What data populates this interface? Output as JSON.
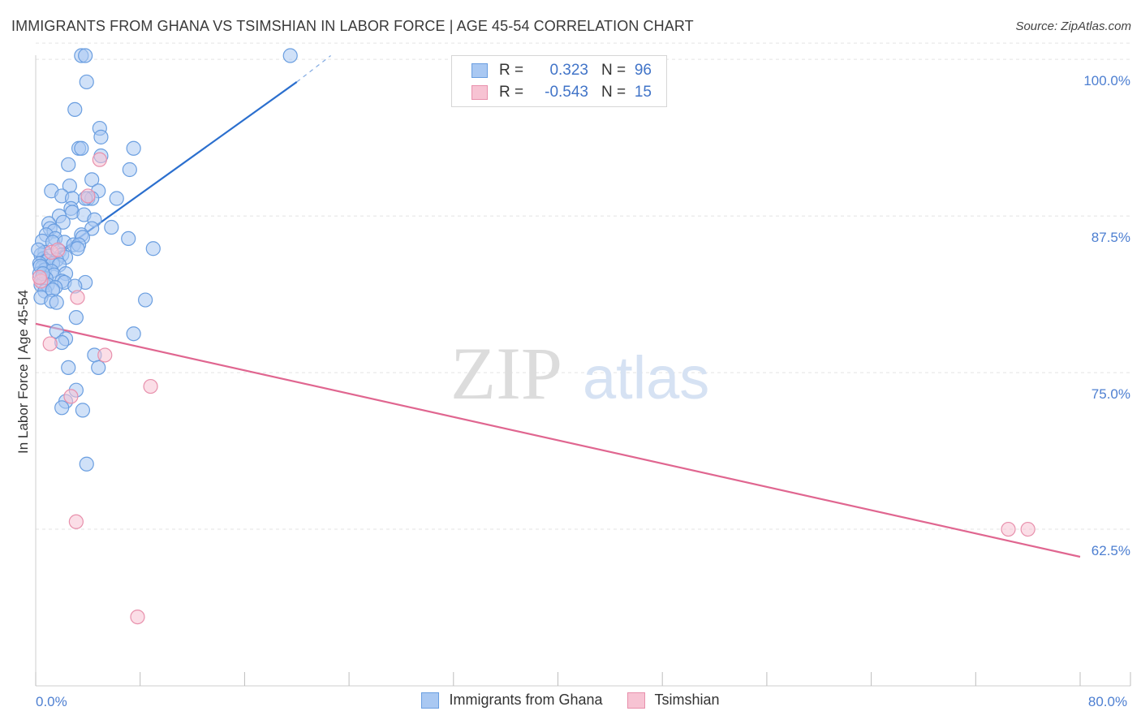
{
  "header": {
    "title": "IMMIGRANTS FROM GHANA VS TSIMSHIAN IN LABOR FORCE | AGE 45-54 CORRELATION CHART",
    "source": "Source: ZipAtlas.com"
  },
  "watermark": {
    "zip": "ZIP",
    "atlas": "atlas"
  },
  "legend": {
    "rows": [
      {
        "r_label": "R =",
        "r_value": "0.323",
        "n_label": "N =",
        "n_value": "96",
        "color": "#a9c8f2",
        "border": "#6a9ee0"
      },
      {
        "r_label": "R =",
        "r_value": "-0.543",
        "n_label": "N =",
        "n_value": "15",
        "color": "#f7c3d3",
        "border": "#e890ac"
      }
    ]
  },
  "bottom_legend": {
    "series1": "Immigrants from Ghana",
    "series2": "Tsimshian"
  },
  "chart_data": {
    "type": "scatter",
    "title": "IMMIGRANTS FROM GHANA VS TSIMSHIAN IN LABOR FORCE | AGE 45-54 CORRELATION CHART",
    "xlabel": "",
    "ylabel": "In Labor Force | Age 45-54",
    "xlim": [
      0,
      80
    ],
    "ylim": [
      50,
      101.5
    ],
    "x_tick_labels": [
      {
        "value": 0,
        "label": "0.0%"
      },
      {
        "value": 80,
        "label": "80.0%"
      }
    ],
    "y_tick_labels": [
      {
        "value": 100,
        "label": "100.0%"
      },
      {
        "value": 87.5,
        "label": "87.5%"
      },
      {
        "value": 75,
        "label": "75.0%"
      },
      {
        "value": 62.5,
        "label": "62.5%"
      }
    ],
    "x_minor_ticks": [
      0,
      8,
      16,
      24,
      32,
      40,
      48,
      56,
      64,
      72,
      80
    ],
    "grid": true,
    "series": [
      {
        "name": "Immigrants from Ghana",
        "color": "#a9c8f2",
        "stroke": "#6a9ee0",
        "line_color": "#2b6fce",
        "trend": {
          "x1": 0.3,
          "y1": 83.5,
          "x2": 20.0,
          "y2": 98.2,
          "dash_to_x": 22.6,
          "dash_to_y": 100.3
        },
        "points": [
          [
            3.5,
            100.3
          ],
          [
            3.8,
            100.3
          ],
          [
            19.5,
            100.3
          ],
          [
            3.9,
            98.2
          ],
          [
            3.0,
            96.0
          ],
          [
            4.9,
            94.5
          ],
          [
            5.0,
            93.8
          ],
          [
            3.3,
            92.9
          ],
          [
            3.5,
            92.9
          ],
          [
            7.5,
            92.9
          ],
          [
            5.0,
            92.3
          ],
          [
            2.5,
            91.6
          ],
          [
            7.2,
            91.2
          ],
          [
            4.3,
            90.4
          ],
          [
            2.6,
            89.9
          ],
          [
            4.8,
            89.5
          ],
          [
            1.2,
            89.5
          ],
          [
            2.0,
            89.1
          ],
          [
            4.0,
            88.9
          ],
          [
            4.3,
            88.9
          ],
          [
            2.8,
            88.9
          ],
          [
            6.2,
            88.9
          ],
          [
            3.8,
            88.9
          ],
          [
            2.7,
            88.1
          ],
          [
            2.8,
            87.8
          ],
          [
            3.7,
            87.6
          ],
          [
            1.8,
            87.5
          ],
          [
            4.5,
            87.2
          ],
          [
            2.1,
            87.0
          ],
          [
            1.0,
            86.9
          ],
          [
            4.3,
            86.5
          ],
          [
            1.1,
            86.5
          ],
          [
            5.8,
            86.6
          ],
          [
            1.4,
            86.3
          ],
          [
            0.8,
            86.0
          ],
          [
            3.5,
            86.0
          ],
          [
            1.5,
            85.7
          ],
          [
            3.6,
            85.8
          ],
          [
            7.1,
            85.7
          ],
          [
            0.5,
            85.5
          ],
          [
            1.3,
            85.4
          ],
          [
            2.2,
            85.4
          ],
          [
            2.9,
            85.2
          ],
          [
            3.3,
            85.2
          ],
          [
            3.2,
            84.9
          ],
          [
            9.0,
            84.9
          ],
          [
            1.8,
            84.7
          ],
          [
            0.7,
            84.6
          ],
          [
            2.0,
            84.4
          ],
          [
            0.4,
            84.4
          ],
          [
            1.0,
            84.3
          ],
          [
            2.3,
            84.2
          ],
          [
            0.6,
            84.1
          ],
          [
            1.6,
            84.0
          ],
          [
            0.9,
            83.9
          ],
          [
            1.3,
            83.7
          ],
          [
            0.3,
            83.7
          ],
          [
            1.8,
            83.6
          ],
          [
            0.5,
            83.4
          ],
          [
            0.7,
            83.2
          ],
          [
            1.2,
            83.1
          ],
          [
            0.3,
            82.9
          ],
          [
            1.4,
            82.8
          ],
          [
            2.3,
            82.9
          ],
          [
            0.5,
            82.6
          ],
          [
            0.8,
            82.5
          ],
          [
            2.0,
            82.3
          ],
          [
            2.2,
            82.2
          ],
          [
            3.8,
            82.2
          ],
          [
            0.6,
            82.1
          ],
          [
            0.4,
            82.0
          ],
          [
            0.9,
            82.0
          ],
          [
            1.5,
            81.8
          ],
          [
            3.0,
            81.9
          ],
          [
            0.7,
            81.5
          ],
          [
            1.3,
            81.6
          ],
          [
            0.4,
            81.0
          ],
          [
            1.2,
            80.7
          ],
          [
            1.6,
            80.6
          ],
          [
            8.4,
            80.8
          ],
          [
            3.1,
            79.4
          ],
          [
            1.6,
            78.3
          ],
          [
            7.5,
            78.1
          ],
          [
            2.3,
            77.7
          ],
          [
            2.0,
            77.4
          ],
          [
            4.5,
            76.4
          ],
          [
            4.8,
            75.4
          ],
          [
            2.5,
            75.4
          ],
          [
            3.1,
            73.6
          ],
          [
            2.3,
            72.7
          ],
          [
            2.0,
            72.2
          ],
          [
            3.6,
            72.0
          ],
          [
            3.9,
            67.7
          ],
          [
            0.2,
            84.8
          ],
          [
            0.35,
            83.5
          ],
          [
            0.55,
            82.9
          ]
        ]
      },
      {
        "name": "Tsimshian",
        "color": "#f7c3d3",
        "stroke": "#e890ac",
        "line_color": "#e06690",
        "trend": {
          "x1": 0,
          "y1": 78.9,
          "x2": 80,
          "y2": 60.3
        },
        "points": [
          [
            4.9,
            92.0
          ],
          [
            4.0,
            89.1
          ],
          [
            1.2,
            84.6
          ],
          [
            1.7,
            84.8
          ],
          [
            0.4,
            82.3
          ],
          [
            3.2,
            81.0
          ],
          [
            1.1,
            77.3
          ],
          [
            5.3,
            76.4
          ],
          [
            2.7,
            73.1
          ],
          [
            8.8,
            73.9
          ],
          [
            3.1,
            63.1
          ],
          [
            7.8,
            55.5
          ],
          [
            74.5,
            62.5
          ],
          [
            76.0,
            62.5
          ],
          [
            0.3,
            82.6
          ]
        ]
      }
    ]
  }
}
